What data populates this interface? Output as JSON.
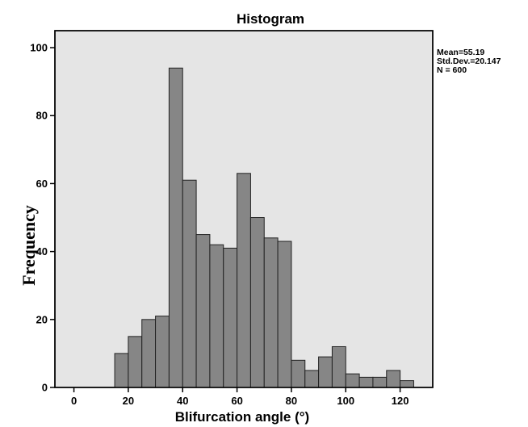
{
  "chart_data": {
    "type": "bar",
    "title": "Histogram",
    "xlabel": "Blifurcation angle (°)",
    "ylabel": "Frequency",
    "bin_width": 5,
    "bins": [
      {
        "start": 15,
        "end": 20,
        "count": 10
      },
      {
        "start": 20,
        "end": 25,
        "count": 15
      },
      {
        "start": 25,
        "end": 30,
        "count": 20
      },
      {
        "start": 30,
        "end": 35,
        "count": 21
      },
      {
        "start": 35,
        "end": 40,
        "count": 94
      },
      {
        "start": 40,
        "end": 45,
        "count": 61
      },
      {
        "start": 45,
        "end": 50,
        "count": 45
      },
      {
        "start": 50,
        "end": 55,
        "count": 42
      },
      {
        "start": 55,
        "end": 60,
        "count": 41
      },
      {
        "start": 60,
        "end": 65,
        "count": 63
      },
      {
        "start": 65,
        "end": 70,
        "count": 50
      },
      {
        "start": 70,
        "end": 75,
        "count": 44
      },
      {
        "start": 75,
        "end": 80,
        "count": 43
      },
      {
        "start": 80,
        "end": 85,
        "count": 8
      },
      {
        "start": 85,
        "end": 90,
        "count": 5
      },
      {
        "start": 90,
        "end": 95,
        "count": 9
      },
      {
        "start": 95,
        "end": 100,
        "count": 12
      },
      {
        "start": 100,
        "end": 105,
        "count": 4
      },
      {
        "start": 105,
        "end": 110,
        "count": 3
      },
      {
        "start": 110,
        "end": 115,
        "count": 3
      },
      {
        "start": 115,
        "end": 120,
        "count": 5
      },
      {
        "start": 120,
        "end": 125,
        "count": 2
      }
    ],
    "xlim": [
      -7,
      132
    ],
    "ylim": [
      0,
      105
    ],
    "xticks": [
      0,
      20,
      40,
      60,
      80,
      100,
      120
    ],
    "yticks": [
      0,
      20,
      40,
      60,
      80,
      100
    ],
    "stats": [
      "Mean=55.19",
      "Std.Dev.=20.147",
      "N = 600"
    ],
    "grid": false,
    "colors": {
      "plot_background": "#e5e5e5",
      "bar_fill": "#868686",
      "bar_edge": "#222222",
      "axis": "#000000"
    }
  }
}
